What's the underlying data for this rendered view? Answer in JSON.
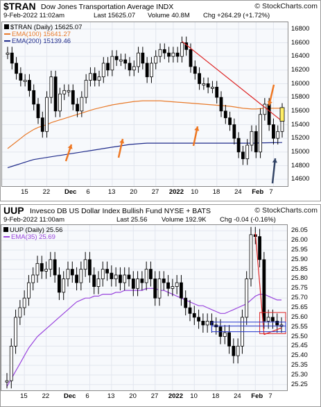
{
  "colors": {
    "up": "#000000",
    "ema100": "#e87a2a",
    "ema200": "#1e2a8a",
    "ema35": "#9944dd",
    "trend": "#dd2222",
    "box": "#2233cc",
    "arrow_orange": "#ee7722",
    "arrow_blue": "#334466",
    "highlight": "#ffee66"
  },
  "panel1": {
    "symbol": "$TRAN",
    "name": "Dow Jones Transportation Average INDX",
    "watermark": "© StockCharts.com",
    "date": "9-Feb-2022 11:02am",
    "last": "Last 15625.07",
    "volume": "Volume 40.8M",
    "chg": "Chg +264.29 (+1.72%)",
    "legend": [
      "$TRAN (Daily) 15625.07",
      "EMA(100) 15641.27",
      "EMA(200) 15139.46"
    ]
  },
  "panel2": {
    "symbol": "UUP",
    "name": "Invesco DB US Dollar Index Bullish Fund NYSE + BATS",
    "watermark": "© StockCharts.com",
    "date": "9-Feb-2022 11:00am",
    "last": "Last 25.56",
    "volume": "Volume 192.9K",
    "chg": "Chg -0.04 (-0.16%)",
    "legend": [
      "UUP (Daily) 25.56",
      "EMA(35) 25.69"
    ]
  },
  "chart_data": [
    {
      "type": "line",
      "title": "Dow Jones Transportation Average INDX",
      "x_tick_labels": [
        "15",
        "22",
        "Dec",
        "6",
        "13",
        "20",
        "27",
        "2022",
        "10",
        "18",
        "24",
        "Feb",
        "7"
      ],
      "y_tick_labels": [
        "16800",
        "16600",
        "16400",
        "16200",
        "16000",
        "15800",
        "15600",
        "15400",
        "15200",
        "15000",
        "14800",
        "14600"
      ],
      "ylim": [
        14500,
        16900
      ],
      "series": [
        {
          "name": "$TRAN (Daily) 15625.07",
          "values": [
            16450,
            16300,
            16150,
            16050,
            16050,
            15900,
            15700,
            15500,
            15300,
            15800,
            16100,
            15600,
            15850,
            15900,
            15900,
            15700,
            15600,
            15800,
            16050,
            16150,
            16050,
            16100,
            16300,
            16200,
            16400,
            16350,
            16350,
            16300,
            16200,
            16250,
            16450,
            16300,
            16100,
            16300,
            16400,
            16500,
            16450,
            16400,
            16450,
            16400,
            16600,
            16500,
            16250,
            16150,
            16000,
            16000,
            15950,
            15950,
            15800,
            15600,
            15500,
            15400,
            15200,
            15000,
            14900,
            15100,
            15300,
            15000,
            15550,
            15700,
            15400,
            15200,
            15300,
            15625
          ]
        },
        {
          "name": "EMA(100) 15641.27",
          "values": [
            15050,
            15100,
            15150,
            15200,
            15250,
            15290,
            15330,
            15360,
            15380,
            15400,
            15430,
            15450,
            15470,
            15490,
            15510,
            15530,
            15550,
            15570,
            15590,
            15610,
            15630,
            15645,
            15660,
            15675,
            15690,
            15700,
            15710,
            15720,
            15730,
            15740,
            15745,
            15750,
            15750,
            15750,
            15750,
            15750,
            15745,
            15740,
            15735,
            15730,
            15725,
            15720,
            15715,
            15710,
            15705,
            15700,
            15695,
            15690,
            15685,
            15680,
            15675,
            15670,
            15660,
            15650,
            15640,
            15635,
            15630,
            15630,
            15635,
            15640,
            15640,
            15640,
            15640,
            15641
          ]
        },
        {
          "name": "EMA(200) 15139.46",
          "values": [
            14770,
            14790,
            14810,
            14830,
            14850,
            14870,
            14890,
            14900,
            14910,
            14920,
            14930,
            14940,
            14950,
            14960,
            14970,
            14980,
            14990,
            15000,
            15010,
            15020,
            15030,
            15040,
            15050,
            15060,
            15070,
            15080,
            15090,
            15100,
            15110,
            15115,
            15120,
            15125,
            15130,
            15130,
            15130,
            15130,
            15130,
            15130,
            15130,
            15130,
            15130,
            15130,
            15130,
            15130,
            15130,
            15130,
            15130,
            15130,
            15130,
            15130,
            15130,
            15130,
            15130,
            15130,
            15130,
            15130,
            15130,
            15130,
            15135,
            15135,
            15136,
            15137,
            15138,
            15139
          ]
        }
      ]
    },
    {
      "type": "line",
      "title": "Invesco DB US Dollar Index Bullish Fund NYSE + BATS",
      "x_tick_labels": [
        "15",
        "22",
        "Dec",
        "6",
        "13",
        "20",
        "27",
        "2022",
        "10",
        "18",
        "24",
        "Feb",
        "7"
      ],
      "y_tick_labels": [
        "26.05",
        "26.00",
        "25.95",
        "25.90",
        "25.85",
        "25.80",
        "25.75",
        "25.70",
        "25.65",
        "25.60",
        "25.55",
        "25.50",
        "25.45",
        "25.40",
        "25.35",
        "25.30",
        "25.25"
      ],
      "ylim": [
        25.22,
        26.08
      ],
      "series": [
        {
          "name": "UUP (Daily) 25.56",
          "values": [
            25.27,
            25.45,
            25.6,
            25.65,
            25.7,
            25.78,
            25.82,
            25.88,
            25.84,
            25.85,
            25.9,
            25.82,
            25.73,
            25.8,
            25.85,
            25.82,
            25.78,
            25.85,
            25.9,
            25.82,
            25.76,
            25.8,
            25.85,
            25.83,
            25.8,
            25.82,
            25.78,
            25.82,
            25.8,
            25.75,
            25.8,
            25.78,
            25.85,
            25.8,
            25.7,
            25.8,
            25.78,
            25.75,
            25.76,
            25.78,
            25.7,
            25.65,
            25.62,
            25.6,
            25.58,
            25.56,
            25.58,
            25.56,
            25.55,
            25.5,
            25.52,
            25.45,
            25.4,
            25.45,
            25.6,
            25.8,
            26.03,
            26.02,
            25.9,
            25.58,
            25.6,
            25.58,
            25.56,
            25.56
          ]
        },
        {
          "name": "EMA(35) 25.69",
          "values": [
            25.24,
            25.28,
            25.32,
            25.36,
            25.4,
            25.44,
            25.47,
            25.5,
            25.52,
            25.54,
            25.56,
            25.58,
            25.6,
            25.62,
            25.64,
            25.66,
            25.68,
            25.69,
            25.7,
            25.7,
            25.71,
            25.71,
            25.72,
            25.72,
            25.72,
            25.73,
            25.73,
            25.74,
            25.74,
            25.74,
            25.74,
            25.74,
            25.75,
            25.75,
            25.75,
            25.74,
            25.74,
            25.73,
            25.72,
            25.71,
            25.7,
            25.69,
            25.68,
            25.67,
            25.66,
            25.66,
            25.65,
            25.64,
            25.63,
            25.62,
            25.62,
            25.63,
            25.64,
            25.65,
            25.66,
            25.67,
            25.69,
            25.71,
            25.72,
            25.72,
            25.71,
            25.7,
            25.69,
            25.69
          ]
        }
      ]
    }
  ]
}
